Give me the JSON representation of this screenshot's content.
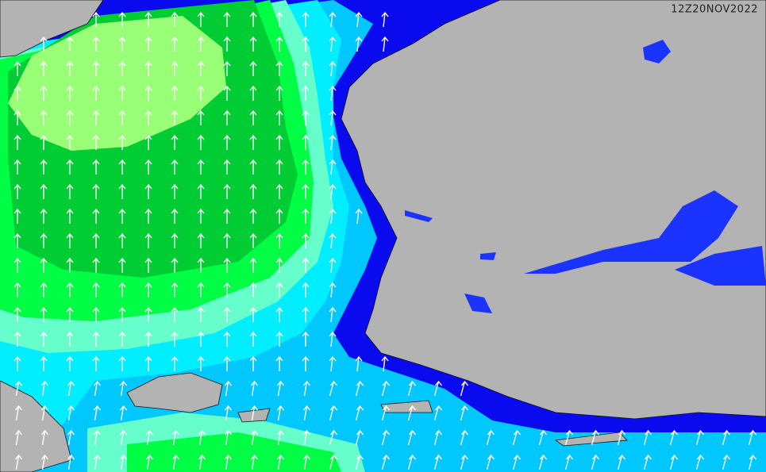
{
  "timestamp": "12Z20NOV2022"
}
